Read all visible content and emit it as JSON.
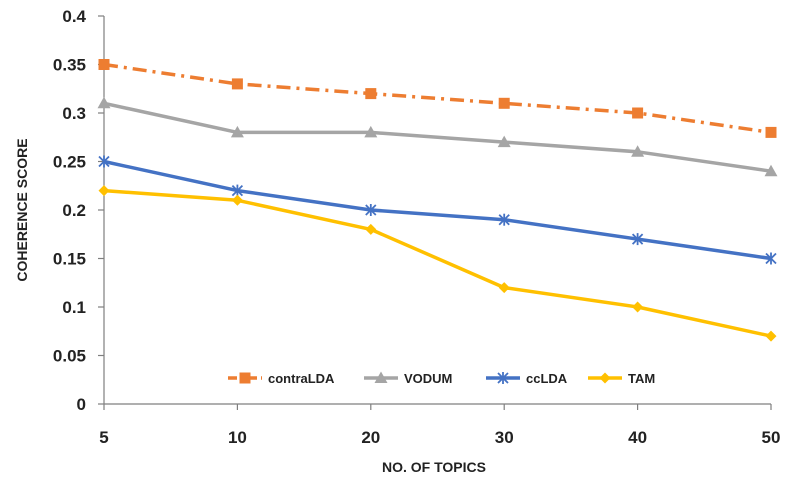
{
  "chart_data": {
    "type": "line",
    "title": "",
    "xlabel": "NO. OF TOPICS",
    "ylabel": "COHERENCE SCORE",
    "categories": [
      "5",
      "10",
      "20",
      "30",
      "40",
      "50"
    ],
    "ylim": [
      0,
      0.4
    ],
    "yticks": [
      "0",
      "0.05",
      "0.1",
      "0.15",
      "0.2",
      "0.25",
      "0.3",
      "0.35",
      "0.4"
    ],
    "grid": false,
    "legend": "inside-bottom",
    "series": [
      {
        "name": "contraLDA",
        "values": [
          0.35,
          0.33,
          0.32,
          0.31,
          0.3,
          0.28
        ],
        "color": "#ED7D31",
        "marker": "square",
        "dash": "dash-dot"
      },
      {
        "name": "VODUM",
        "values": [
          0.31,
          0.28,
          0.28,
          0.27,
          0.26,
          0.24
        ],
        "color": "#A5A5A5",
        "marker": "triangle",
        "dash": "solid"
      },
      {
        "name": "ccLDA",
        "values": [
          0.25,
          0.22,
          0.2,
          0.19,
          0.17,
          0.15
        ],
        "color": "#4472C4",
        "marker": "asterisk",
        "dash": "solid"
      },
      {
        "name": "TAM",
        "values": [
          0.22,
          0.21,
          0.18,
          0.12,
          0.1,
          0.07
        ],
        "color": "#FFC000",
        "marker": "diamond",
        "dash": "solid"
      }
    ]
  }
}
